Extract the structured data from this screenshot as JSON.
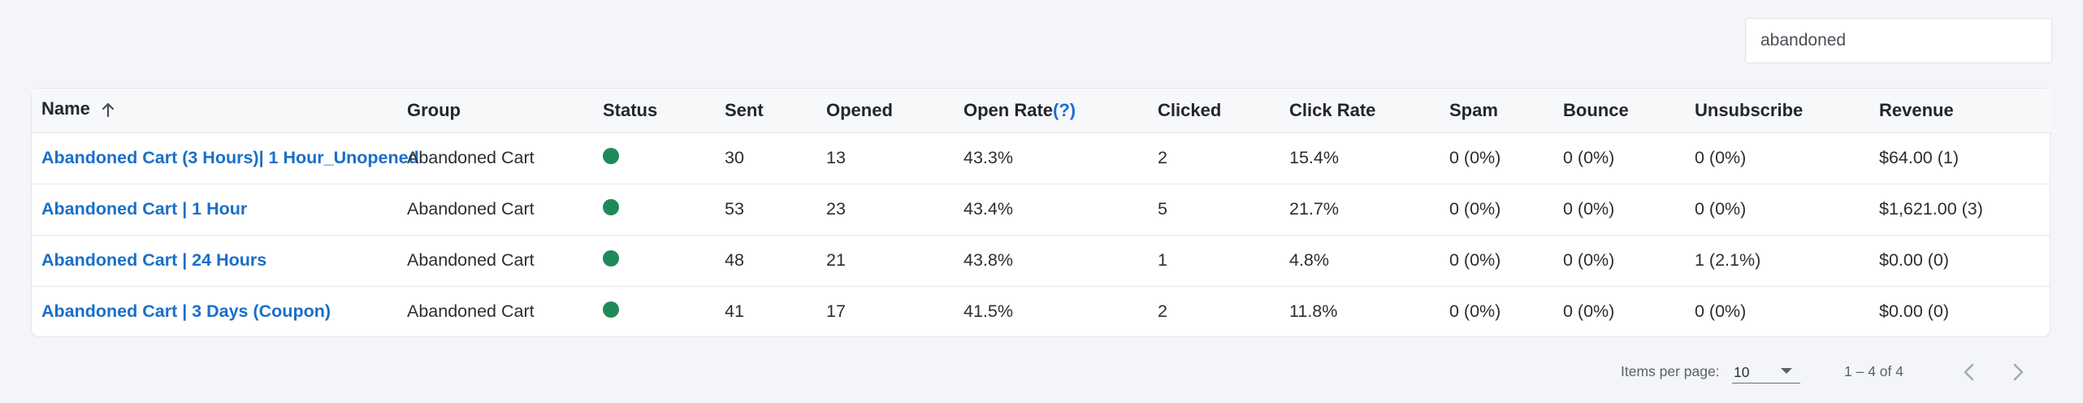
{
  "search": {
    "value": "abandoned"
  },
  "table": {
    "columns": {
      "name": "Name",
      "group": "Group",
      "status": "Status",
      "sent": "Sent",
      "opened": "Opened",
      "open_rate": "Open Rate",
      "open_rate_help": "(?)",
      "clicked": "Clicked",
      "click_rate": "Click Rate",
      "spam": "Spam",
      "bounce": "Bounce",
      "unsubscribe": "Unsubscribe",
      "revenue": "Revenue"
    },
    "rows": [
      {
        "name": "Abandoned Cart (3 Hours)| 1 Hour_Unopened",
        "group": "Abandoned Cart",
        "status_color": "#1e8a5a",
        "sent": "30",
        "opened": "13",
        "open_rate": "43.3%",
        "clicked": "2",
        "click_rate": "15.4%",
        "spam": "0 (0%)",
        "bounce": "0 (0%)",
        "unsubscribe": "0 (0%)",
        "revenue": "$64.00 (1)"
      },
      {
        "name": "Abandoned Cart | 1 Hour",
        "group": "Abandoned Cart",
        "status_color": "#1e8a5a",
        "sent": "53",
        "opened": "23",
        "open_rate": "43.4%",
        "clicked": "5",
        "click_rate": "21.7%",
        "spam": "0 (0%)",
        "bounce": "0 (0%)",
        "unsubscribe": "0 (0%)",
        "revenue": "$1,621.00 (3)"
      },
      {
        "name": "Abandoned Cart | 24 Hours",
        "group": "Abandoned Cart",
        "status_color": "#1e8a5a",
        "sent": "48",
        "opened": "21",
        "open_rate": "43.8%",
        "clicked": "1",
        "click_rate": "4.8%",
        "spam": "0 (0%)",
        "bounce": "0 (0%)",
        "unsubscribe": "1 (2.1%)",
        "revenue": "$0.00 (0)"
      },
      {
        "name": "Abandoned Cart | 3 Days (Coupon)",
        "group": "Abandoned Cart",
        "status_color": "#1e8a5a",
        "sent": "41",
        "opened": "17",
        "open_rate": "41.5%",
        "clicked": "2",
        "click_rate": "11.8%",
        "spam": "0 (0%)",
        "bounce": "0 (0%)",
        "unsubscribe": "0 (0%)",
        "revenue": "$0.00 (0)"
      }
    ]
  },
  "pagination": {
    "items_per_page_label": "Items per page:",
    "items_per_page_value": "10",
    "range": "1 – 4 of 4"
  },
  "icons": {
    "sort": "arrow-up-icon",
    "caret": "caret-down-icon",
    "prev": "chevron-left-icon",
    "next": "chevron-right-icon"
  }
}
